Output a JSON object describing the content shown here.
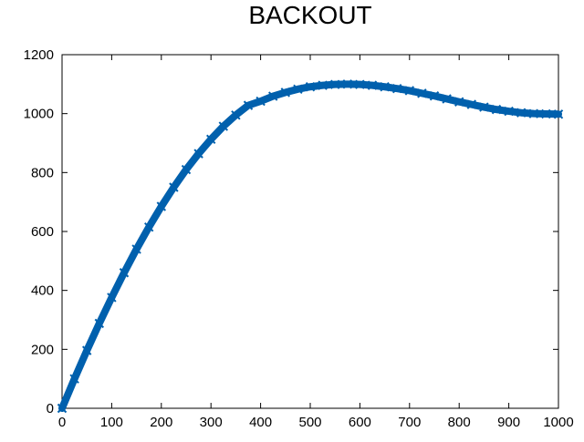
{
  "chart_data": {
    "type": "scatter",
    "title": "BACKOUT",
    "xlabel": "",
    "ylabel": "",
    "xlim": [
      0,
      1000
    ],
    "ylim": [
      0,
      1200
    ],
    "xticks": [
      0,
      100,
      200,
      300,
      400,
      500,
      600,
      700,
      800,
      900,
      1000
    ],
    "yticks": [
      0,
      200,
      400,
      600,
      800,
      1000,
      1200
    ],
    "grid": false,
    "legend": "none",
    "marker": "x",
    "series": [
      {
        "color": "#0060ad",
        "x": [
          0,
          25,
          50,
          75,
          100,
          125,
          150,
          175,
          200,
          225,
          250,
          275,
          300,
          325,
          350,
          375,
          400,
          425,
          450,
          475,
          500,
          525,
          550,
          575,
          600,
          625,
          650,
          675,
          700,
          725,
          750,
          775,
          800,
          825,
          850,
          875,
          900,
          925,
          950,
          975,
          1000
        ],
        "y": [
          0,
          100,
          196,
          288,
          376,
          460,
          540,
          615,
          685,
          750,
          810,
          864,
          913,
          957,
          995,
          1028,
          1042,
          1059,
          1072,
          1083,
          1091,
          1096,
          1099,
          1100,
          1099,
          1096,
          1091,
          1085,
          1078,
          1069,
          1060,
          1050,
          1040,
          1031,
          1022,
          1014,
          1008,
          1003,
          1000,
          999,
          998
        ]
      }
    ]
  }
}
